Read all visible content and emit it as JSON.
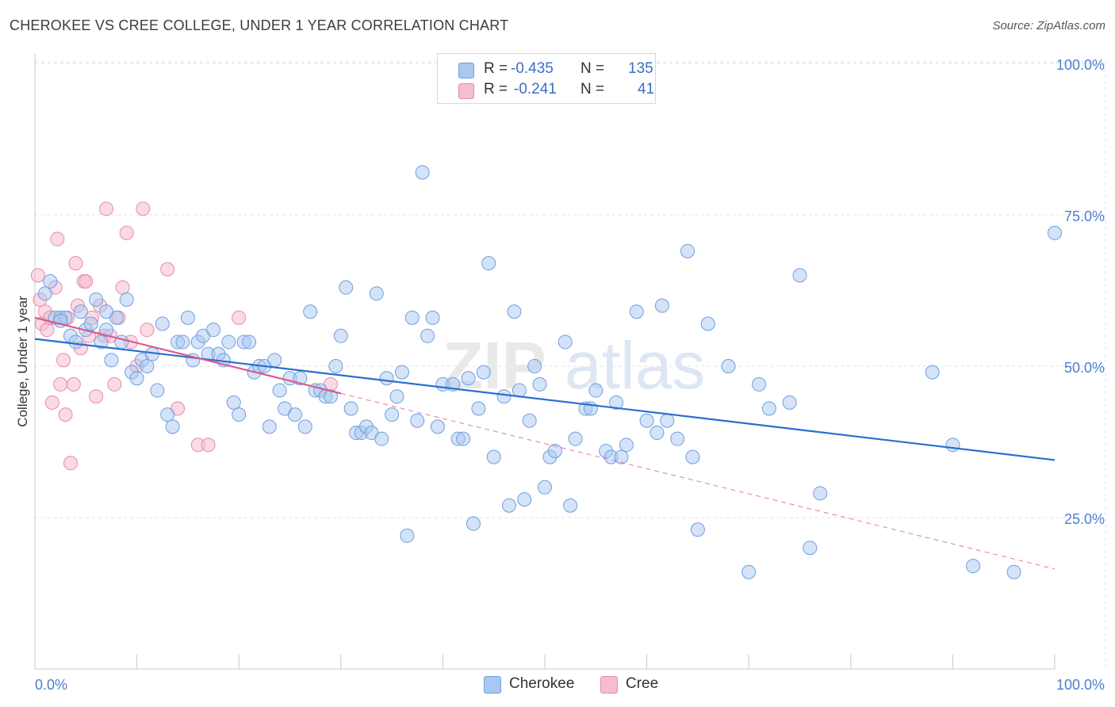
{
  "header": {
    "title": "CHEROKEE VS CREE COLLEGE, UNDER 1 YEAR CORRELATION CHART",
    "source": "Source: ZipAtlas.com"
  },
  "watermark": {
    "zip": "ZIP",
    "atlas": "atlas"
  },
  "legend": {
    "rows": [
      {
        "r_label": "R =",
        "r_value": "-0.435",
        "n_label": "N =",
        "n_value": "135"
      },
      {
        "r_label": "R =",
        "r_value": "-0.241",
        "n_label": "N =",
        "n_value": "41"
      }
    ]
  },
  "bottom_legend": {
    "cherokee": "Cherokee",
    "cree": "Cree"
  },
  "colors": {
    "cherokee_fill": "#aac8ef",
    "cherokee_stroke": "#6f9fe0",
    "cherokee_line": "#2a6fd0",
    "cree_fill": "#f6bcd0",
    "cree_stroke": "#e88aac",
    "cree_line": "#d95c8a",
    "axis_label": "#4a7fd0",
    "grid": "#e2e2e2"
  },
  "chart_data": {
    "type": "scatter",
    "title": "CHEROKEE VS CREE COLLEGE, UNDER 1 YEAR CORRELATION CHART",
    "xlabel": "",
    "ylabel": "College, Under 1 year",
    "xlim": [
      0,
      100
    ],
    "ylim": [
      0,
      105
    ],
    "x_tick_labels": [
      "0.0%",
      "100.0%"
    ],
    "y_ticks": [
      25,
      50,
      75,
      100
    ],
    "y_tick_labels": [
      "25.0%",
      "50.0%",
      "75.0%",
      "100.0%"
    ],
    "grid": true,
    "series": [
      {
        "name": "Cherokee",
        "r": -0.435,
        "n": 135,
        "trend": {
          "x": [
            0,
            100
          ],
          "y": [
            54.5,
            34.5
          ]
        },
        "points": [
          [
            1,
            62
          ],
          [
            1.5,
            64
          ],
          [
            2,
            58
          ],
          [
            2.5,
            58
          ],
          [
            3,
            58
          ],
          [
            3.5,
            55
          ],
          [
            4,
            54
          ],
          [
            4.5,
            59
          ],
          [
            5,
            56
          ],
          [
            5.5,
            57
          ],
          [
            6,
            61
          ],
          [
            6.5,
            54
          ],
          [
            7,
            56
          ],
          [
            7.5,
            51
          ],
          [
            8,
            58
          ],
          [
            8.5,
            54
          ],
          [
            9,
            61
          ],
          [
            9.5,
            49
          ],
          [
            10,
            48
          ],
          [
            10.5,
            51
          ],
          [
            11,
            50
          ],
          [
            11.5,
            52
          ],
          [
            12,
            46
          ],
          [
            12.5,
            57
          ],
          [
            13,
            42
          ],
          [
            13.5,
            40
          ],
          [
            14,
            54
          ],
          [
            14.5,
            54
          ],
          [
            15,
            58
          ],
          [
            15.5,
            51
          ],
          [
            16,
            54
          ],
          [
            16.5,
            55
          ],
          [
            17,
            52
          ],
          [
            17.5,
            56
          ],
          [
            18,
            52
          ],
          [
            18.5,
            51
          ],
          [
            19,
            54
          ],
          [
            19.5,
            44
          ],
          [
            20,
            42
          ],
          [
            20.5,
            54
          ],
          [
            21,
            54
          ],
          [
            21.5,
            49
          ],
          [
            22,
            50
          ],
          [
            22.5,
            50
          ],
          [
            23,
            40
          ],
          [
            23.5,
            51
          ],
          [
            24,
            46
          ],
          [
            24.5,
            43
          ],
          [
            25,
            48
          ],
          [
            25.5,
            42
          ],
          [
            26,
            48
          ],
          [
            26.5,
            40
          ],
          [
            27,
            59
          ],
          [
            27.5,
            46
          ],
          [
            28,
            46
          ],
          [
            28.5,
            45
          ],
          [
            29,
            45
          ],
          [
            29.5,
            50
          ],
          [
            30,
            55
          ],
          [
            30.5,
            63
          ],
          [
            31,
            43
          ],
          [
            31.5,
            39
          ],
          [
            32,
            39
          ],
          [
            32.5,
            40
          ],
          [
            33,
            39
          ],
          [
            33.5,
            62
          ],
          [
            34,
            38
          ],
          [
            34.5,
            48
          ],
          [
            35,
            42
          ],
          [
            35.5,
            45
          ],
          [
            36,
            49
          ],
          [
            36.5,
            22
          ],
          [
            37,
            58
          ],
          [
            37.5,
            41
          ],
          [
            38,
            82
          ],
          [
            38.5,
            55
          ],
          [
            39,
            58
          ],
          [
            39.5,
            40
          ],
          [
            40,
            47
          ],
          [
            41,
            47
          ],
          [
            41.5,
            38
          ],
          [
            42,
            38
          ],
          [
            42.5,
            48
          ],
          [
            43,
            24
          ],
          [
            43.5,
            43
          ],
          [
            44,
            49
          ],
          [
            44.5,
            67
          ],
          [
            45,
            35
          ],
          [
            46,
            45
          ],
          [
            46.5,
            27
          ],
          [
            47,
            59
          ],
          [
            47.5,
            46
          ],
          [
            48,
            28
          ],
          [
            48.5,
            41
          ],
          [
            49,
            50
          ],
          [
            49.5,
            47
          ],
          [
            50,
            30
          ],
          [
            50.5,
            35
          ],
          [
            51,
            36
          ],
          [
            52,
            54
          ],
          [
            52.5,
            27
          ],
          [
            53,
            38
          ],
          [
            54,
            43
          ],
          [
            54.5,
            43
          ],
          [
            55,
            46
          ],
          [
            56,
            36
          ],
          [
            56.5,
            35
          ],
          [
            57,
            44
          ],
          [
            57.5,
            35
          ],
          [
            58,
            37
          ],
          [
            59,
            59
          ],
          [
            60,
            41
          ],
          [
            61,
            39
          ],
          [
            61.5,
            60
          ],
          [
            62,
            41
          ],
          [
            63,
            38
          ],
          [
            64,
            69
          ],
          [
            64.5,
            35
          ],
          [
            65,
            23
          ],
          [
            66,
            57
          ],
          [
            68,
            50
          ],
          [
            70,
            16
          ],
          [
            71,
            47
          ],
          [
            72,
            43
          ],
          [
            74,
            44
          ],
          [
            75,
            65
          ],
          [
            76,
            20
          ],
          [
            77,
            29
          ],
          [
            88,
            49
          ],
          [
            90,
            37
          ],
          [
            92,
            17
          ],
          [
            96,
            16
          ],
          [
            100,
            72
          ],
          [
            2.5,
            57.5
          ],
          [
            7,
            59
          ]
        ]
      },
      {
        "name": "Cree",
        "r": -0.241,
        "n": 41,
        "trend_solid": {
          "x": [
            0,
            30
          ],
          "y": [
            58,
            45.5
          ]
        },
        "trend_dashed": {
          "x": [
            30,
            100
          ],
          "y": [
            45.5,
            16.5
          ]
        },
        "points": [
          [
            0.3,
            65
          ],
          [
            0.5,
            61
          ],
          [
            0.7,
            57
          ],
          [
            1,
            59
          ],
          [
            1.2,
            56
          ],
          [
            1.5,
            58
          ],
          [
            1.7,
            44
          ],
          [
            2,
            63
          ],
          [
            2.2,
            71
          ],
          [
            2.5,
            47
          ],
          [
            2.8,
            51
          ],
          [
            3,
            42
          ],
          [
            3.2,
            58
          ],
          [
            3.5,
            34
          ],
          [
            3.8,
            47
          ],
          [
            4,
            67
          ],
          [
            4.2,
            60
          ],
          [
            4.5,
            53
          ],
          [
            4.8,
            64
          ],
          [
            5,
            64
          ],
          [
            5.3,
            55
          ],
          [
            5.6,
            58
          ],
          [
            6,
            45
          ],
          [
            6.4,
            60
          ],
          [
            6.8,
            55
          ],
          [
            7,
            76
          ],
          [
            7.4,
            55
          ],
          [
            7.8,
            47
          ],
          [
            8.2,
            58
          ],
          [
            8.6,
            63
          ],
          [
            9,
            72
          ],
          [
            9.4,
            54
          ],
          [
            10,
            50
          ],
          [
            10.6,
            76
          ],
          [
            11,
            56
          ],
          [
            13,
            66
          ],
          [
            14,
            43
          ],
          [
            16,
            37
          ],
          [
            17,
            37
          ],
          [
            20,
            58
          ],
          [
            29,
            47
          ]
        ]
      }
    ]
  }
}
